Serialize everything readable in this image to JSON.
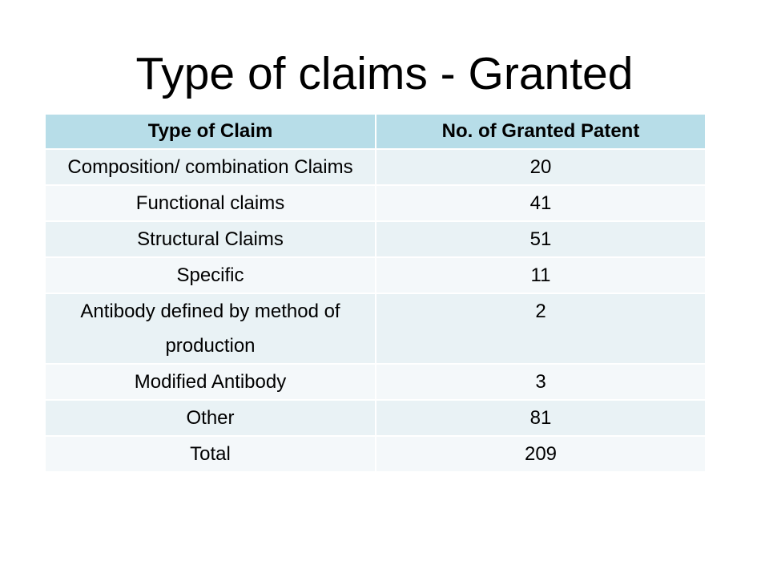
{
  "slide": {
    "title": "Type of claims - Granted"
  },
  "table": {
    "headers": [
      "Type of Claim",
      "No. of Granted Patent"
    ],
    "rows": [
      {
        "type": "Composition/ combination Claims",
        "count": "20"
      },
      {
        "type": "Functional claims",
        "count": "41"
      },
      {
        "type": "Structural Claims",
        "count": "51"
      },
      {
        "type": "Specific",
        "count": "11"
      },
      {
        "type": "Antibody defined by method of production",
        "count": "2"
      },
      {
        "type": "Modified Antibody",
        "count": "3"
      },
      {
        "type": "Other",
        "count": "81"
      },
      {
        "type": "Total",
        "count": "209"
      }
    ]
  }
}
